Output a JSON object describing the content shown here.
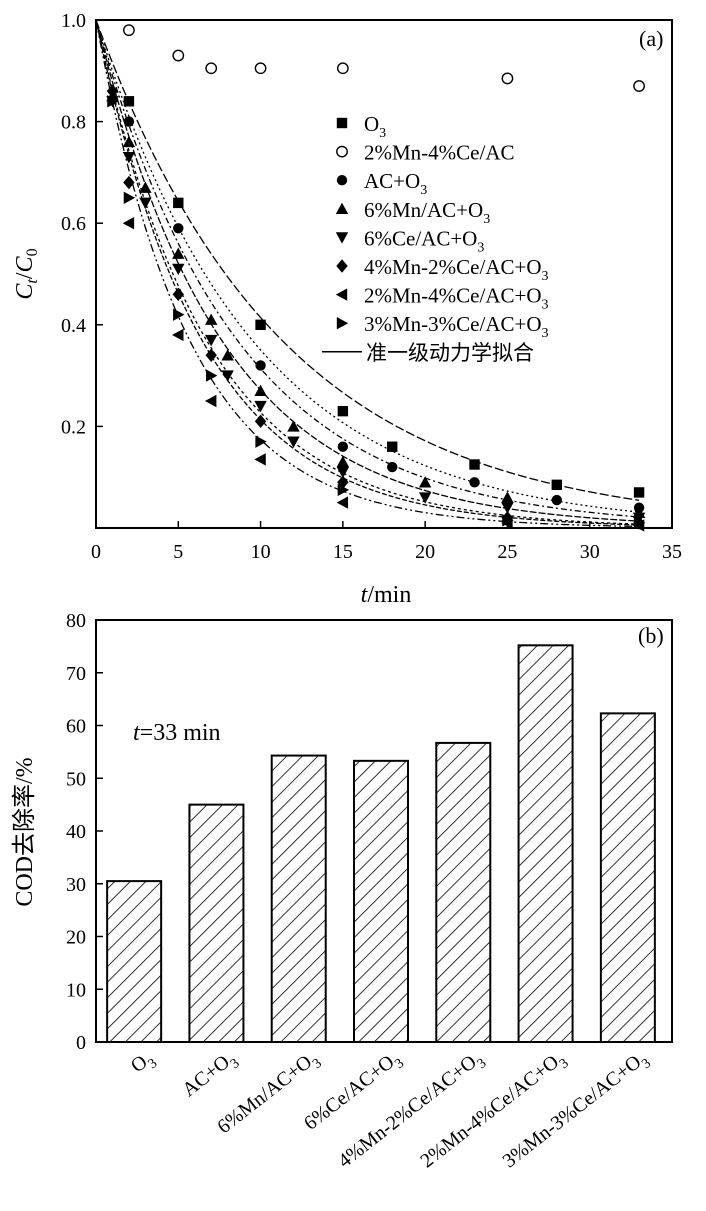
{
  "chart_data": [
    {
      "type": "scatter",
      "panel_label": "(a)",
      "xlabel_italic": "t",
      "xlabel_rest": "/min",
      "ylabel": {
        "c": "C",
        "t": "t",
        "slash": "/",
        "zero": "0"
      },
      "xlim": [
        0,
        35
      ],
      "ylim": [
        0,
        1.0
      ],
      "x_ticks": [
        0,
        5,
        10,
        15,
        20,
        25,
        30,
        35
      ],
      "x_tick_labels": [
        "0",
        "5",
        "10",
        "15",
        "20",
        "25",
        "30",
        "35"
      ],
      "y_ticks": [
        0.2,
        0.4,
        0.6,
        0.8,
        1.0
      ],
      "y_tick_labels": [
        "0.2",
        "0.4",
        "0.6",
        "0.8",
        "1.0"
      ],
      "grid": false,
      "legend_position": "top-right",
      "fit_label": "准一级动力学拟合",
      "series": [
        {
          "name": "O₃",
          "label_main": "O",
          "label_sub": "3",
          "label_tail": "",
          "marker": "square",
          "fit": true,
          "x": [
            0,
            2,
            5,
            10,
            15,
            18,
            23,
            28,
            33
          ],
          "y": [
            1.0,
            0.84,
            0.64,
            0.4,
            0.23,
            0.16,
            0.125,
            0.085,
            0.07
          ]
        },
        {
          "name": "2%Mn-4%Ce/AC",
          "label_main": "2%Mn-4%Ce/AC",
          "label_sub": "",
          "label_tail": "",
          "marker": "open-circle",
          "fit": false,
          "x": [
            0,
            2,
            5,
            7,
            10,
            15,
            25,
            33
          ],
          "y": [
            1.0,
            0.98,
            0.93,
            0.905,
            0.905,
            0.905,
            0.885,
            0.87
          ]
        },
        {
          "name": "AC+O₃",
          "label_main": "AC+O",
          "label_sub": "3",
          "label_tail": "",
          "marker": "circle",
          "fit": true,
          "x": [
            0,
            2,
            5,
            10,
            15,
            18,
            23,
            28,
            33
          ],
          "y": [
            1.0,
            0.8,
            0.59,
            0.32,
            0.16,
            0.12,
            0.09,
            0.055,
            0.04
          ]
        },
        {
          "name": "6%Mn/AC+O₃",
          "label_main": "6%Mn/AC+O",
          "label_sub": "3",
          "label_tail": "",
          "marker": "triangle-up",
          "fit": true,
          "x": [
            0,
            1,
            2,
            3,
            5,
            7,
            8,
            10,
            12,
            15,
            20,
            25,
            33
          ],
          "y": [
            1.0,
            0.85,
            0.76,
            0.67,
            0.54,
            0.41,
            0.34,
            0.27,
            0.2,
            0.13,
            0.09,
            0.06,
            0.03
          ]
        },
        {
          "name": "6%Ce/AC+O₃",
          "label_main": "6%Ce/AC+O",
          "label_sub": "3",
          "label_tail": "",
          "marker": "triangle-down",
          "fit": true,
          "x": [
            0,
            1,
            2,
            3,
            5,
            7,
            8,
            10,
            12,
            15,
            20,
            25,
            33
          ],
          "y": [
            1.0,
            0.84,
            0.73,
            0.64,
            0.51,
            0.37,
            0.3,
            0.24,
            0.17,
            0.11,
            0.06,
            0.04,
            0.02
          ]
        },
        {
          "name": "4%Mn-2%Ce/AC+O₃",
          "label_main": "4%Mn-2%Ce/AC+O",
          "label_sub": "3",
          "label_tail": "",
          "marker": "diamond",
          "fit": true,
          "x": [
            0,
            1,
            2,
            5,
            7,
            10,
            15,
            25,
            33
          ],
          "y": [
            1.0,
            0.86,
            0.68,
            0.46,
            0.34,
            0.21,
            0.09,
            0.02,
            0.01
          ]
        },
        {
          "name": "2%Mn-4%Ce/AC+O₃",
          "label_main": "2%Mn-4%Ce/AC+O",
          "label_sub": "3",
          "label_tail": "",
          "marker": "triangle-left",
          "fit": true,
          "x": [
            0,
            2,
            5,
            7,
            10,
            15,
            25,
            33
          ],
          "y": [
            1.0,
            0.6,
            0.38,
            0.25,
            0.135,
            0.05,
            0.01,
            0.005
          ]
        },
        {
          "name": "3%Mn-3%Ce/AC+O₃",
          "label_main": "3%Mn-3%Ce/AC+O",
          "label_sub": "3",
          "label_tail": "",
          "marker": "triangle-right",
          "fit": true,
          "x": [
            0,
            1,
            2,
            5,
            7,
            10,
            15,
            25,
            33
          ],
          "y": [
            1.0,
            0.84,
            0.65,
            0.42,
            0.3,
            0.17,
            0.075,
            0.015,
            0.01
          ]
        }
      ]
    },
    {
      "type": "bar",
      "panel_label": "(b)",
      "annotation_italic": "t",
      "annotation_rest": "=33 min",
      "ylabel": "COD去除率/%",
      "ylim": [
        0,
        80
      ],
      "y_ticks": [
        0,
        10,
        20,
        30,
        40,
        50,
        60,
        70,
        80
      ],
      "y_tick_labels": [
        "0",
        "10",
        "20",
        "30",
        "40",
        "50",
        "60",
        "70",
        "80"
      ],
      "grid": false,
      "categories": [
        {
          "main": "O",
          "sub": "3"
        },
        {
          "main": "AC+O",
          "sub": "3"
        },
        {
          "main": "6%Mn/AC+O",
          "sub": "3"
        },
        {
          "main": "6%Ce/AC+O",
          "sub": "3"
        },
        {
          "main": "4%Mn-2%Ce/AC+O",
          "sub": "3"
        },
        {
          "main": "2%Mn-4%Ce/AC+O",
          "sub": "3"
        },
        {
          "main": "3%Mn-3%Ce/AC+O",
          "sub": "3"
        }
      ],
      "values": [
        30.5,
        45,
        54.3,
        53.3,
        56.7,
        75.2,
        62.3
      ]
    }
  ]
}
